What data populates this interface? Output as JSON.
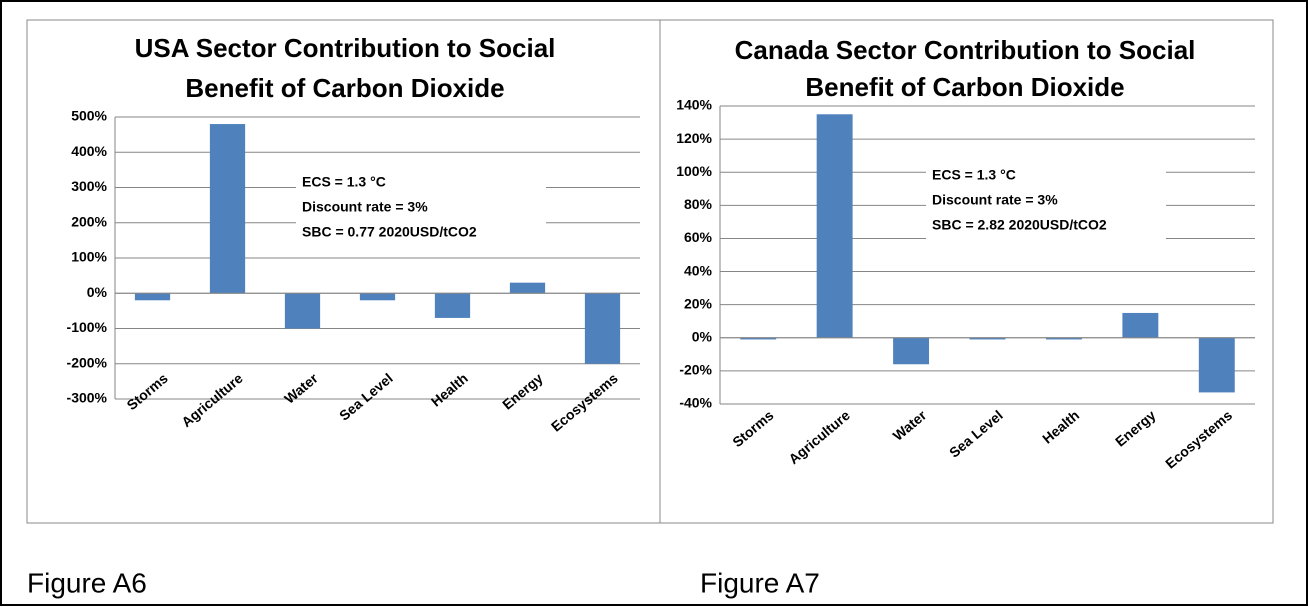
{
  "chart_data": [
    {
      "type": "bar",
      "title": [
        "USA Sector Contribution to Social",
        "Benefit of Carbon Dioxide"
      ],
      "annotations": [
        "ECS = 1.3 °C",
        "Discount rate = 3%",
        "SBC = 0.77 2020USD/tCO2"
      ],
      "categories": [
        "Storms",
        "Agriculture",
        "Water",
        "Sea Level",
        "Health",
        "Energy",
        "Ecosystems"
      ],
      "values": [
        -20,
        480,
        -100,
        -20,
        -70,
        30,
        -200
      ],
      "color": "#4f81bd",
      "ylim": [
        -300,
        500
      ],
      "yticks": [
        {
          "value": -300,
          "label": "-300%"
        },
        {
          "value": -200,
          "label": "-200%"
        },
        {
          "value": -100,
          "label": "-100%"
        },
        {
          "value": 0,
          "label": "0%"
        },
        {
          "value": 100,
          "label": "100%"
        },
        {
          "value": 200,
          "label": "200%"
        },
        {
          "value": 300,
          "label": "300%"
        },
        {
          "value": 400,
          "label": "400%"
        },
        {
          "value": 500,
          "label": "500%"
        }
      ],
      "grid": true,
      "caption": "Figure A6"
    },
    {
      "type": "bar",
      "title": [
        "Canada Sector Contribution to Social",
        "Benefit of Carbon Dioxide"
      ],
      "annotations": [
        "ECS = 1.3 °C",
        "Discount rate = 3%",
        "SBC = 2.82 2020USD/tCO2"
      ],
      "categories": [
        "Storms",
        "Agriculture",
        "Water",
        "Sea Level",
        "Health",
        "Energy",
        "Ecosystems"
      ],
      "values": [
        -1,
        135,
        -16,
        -1,
        -1,
        15,
        -33
      ],
      "color": "#4f81bd",
      "ylim": [
        -40,
        140
      ],
      "yticks": [
        {
          "value": -40,
          "label": "-40%"
        },
        {
          "value": -20,
          "label": "-20%"
        },
        {
          "value": 0,
          "label": "0%"
        },
        {
          "value": 20,
          "label": "20%"
        },
        {
          "value": 40,
          "label": "40%"
        },
        {
          "value": 60,
          "label": "60%"
        },
        {
          "value": 80,
          "label": "80%"
        },
        {
          "value": 100,
          "label": "100%"
        },
        {
          "value": 120,
          "label": "120%"
        },
        {
          "value": 140,
          "label": "140%"
        }
      ],
      "grid": true,
      "caption": "Figure A7"
    }
  ]
}
